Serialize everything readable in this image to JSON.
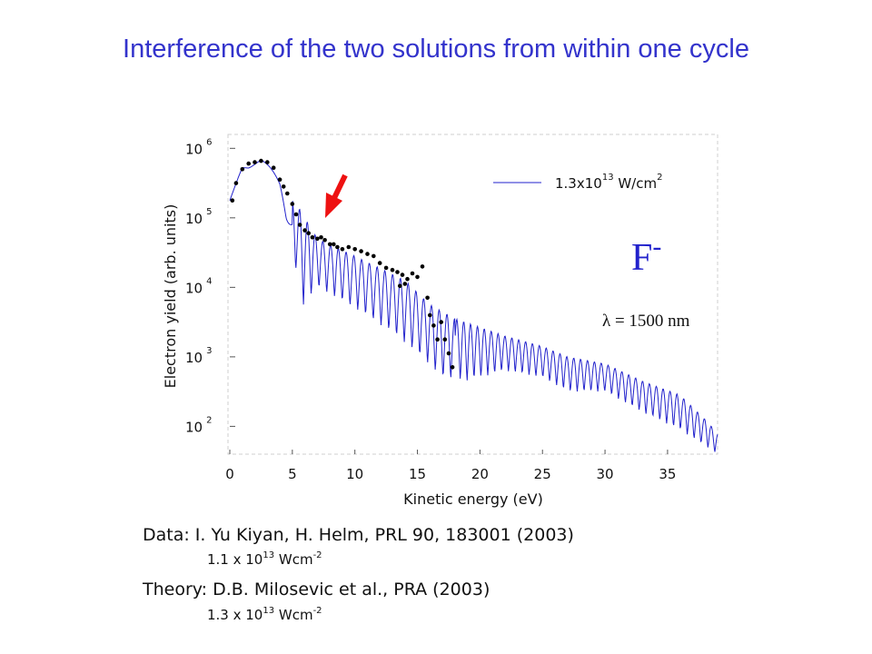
{
  "slide": {
    "title": "Interference of the two solutions from within one cycle"
  },
  "chart_data": {
    "type": "scatter",
    "xlabel": "Kinetic energy (eV)",
    "ylabel": "Electron yield (arb. units)",
    "xlim": [
      0,
      39
    ],
    "ylim_log10": [
      1.6,
      6.2
    ],
    "y_scale": "log",
    "x_ticks": [
      0,
      5,
      10,
      15,
      20,
      25,
      30,
      35
    ],
    "y_ticks": [
      {
        "base": "10",
        "exp": "2"
      },
      {
        "base": "10",
        "exp": "3"
      },
      {
        "base": "10",
        "exp": "4"
      },
      {
        "base": "10",
        "exp": "5"
      },
      {
        "base": "10",
        "exp": "6"
      }
    ],
    "legend": {
      "position": "top-right",
      "label_main": "1.3x10",
      "label_exp": "13",
      "label_unit": " W/cm",
      "label_unit_exp": "2"
    },
    "annotations": {
      "ion_base": "F",
      "ion_charge": "-",
      "wavelength": "λ = 1500 nm",
      "arrow_color": "#ee1111"
    },
    "colors": {
      "theory": "#2222cc",
      "data": "#000000"
    },
    "series": [
      {
        "role": "theory",
        "style": "line",
        "envelope_upper": [
          [
            0,
            5.25
          ],
          [
            1,
            5.75
          ],
          [
            2.5,
            5.85
          ],
          [
            4,
            5.6
          ],
          [
            5,
            5.3
          ],
          [
            7,
            4.7
          ],
          [
            10,
            4.45
          ],
          [
            14,
            4.1
          ],
          [
            16,
            3.75
          ],
          [
            18,
            3.55
          ],
          [
            22,
            3.3
          ],
          [
            25,
            3.15
          ],
          [
            27,
            3.0
          ],
          [
            30,
            2.9
          ],
          [
            33,
            2.65
          ],
          [
            36,
            2.45
          ],
          [
            38,
            2.1
          ],
          [
            39,
            1.9
          ]
        ],
        "envelope_lower": [
          [
            0,
            5.25
          ],
          [
            1,
            5.7
          ],
          [
            2.5,
            5.75
          ],
          [
            4,
            5.4
          ],
          [
            5,
            4.6
          ],
          [
            5.7,
            3.7
          ],
          [
            7,
            4.0
          ],
          [
            10,
            3.7
          ],
          [
            13,
            3.35
          ],
          [
            15,
            3.05
          ],
          [
            17,
            2.7
          ],
          [
            19,
            2.65
          ],
          [
            22,
            2.8
          ],
          [
            25,
            2.7
          ],
          [
            27,
            2.5
          ],
          [
            30,
            2.5
          ],
          [
            33,
            2.2
          ],
          [
            36,
            1.95
          ],
          [
            39,
            1.6
          ]
        ]
      },
      {
        "role": "data",
        "style": "points",
        "points": [
          [
            0.2,
            5.25
          ],
          [
            0.5,
            5.5
          ],
          [
            1.0,
            5.7
          ],
          [
            1.5,
            5.78
          ],
          [
            2.0,
            5.8
          ],
          [
            2.5,
            5.82
          ],
          [
            3.0,
            5.8
          ],
          [
            3.5,
            5.72
          ],
          [
            4.0,
            5.55
          ],
          [
            4.3,
            5.45
          ],
          [
            4.6,
            5.35
          ],
          [
            5.0,
            5.2
          ],
          [
            5.3,
            5.05
          ],
          [
            5.6,
            4.9
          ],
          [
            6.0,
            4.82
          ],
          [
            6.3,
            4.78
          ],
          [
            6.6,
            4.72
          ],
          [
            7.0,
            4.7
          ],
          [
            7.3,
            4.72
          ],
          [
            7.6,
            4.68
          ],
          [
            8.0,
            4.62
          ],
          [
            8.3,
            4.62
          ],
          [
            8.6,
            4.58
          ],
          [
            9.0,
            4.55
          ],
          [
            9.5,
            4.58
          ],
          [
            10.0,
            4.55
          ],
          [
            10.5,
            4.52
          ],
          [
            11.0,
            4.48
          ],
          [
            11.5,
            4.45
          ],
          [
            12.0,
            4.35
          ],
          [
            12.5,
            4.28
          ],
          [
            13.0,
            4.25
          ],
          [
            13.4,
            4.22
          ],
          [
            13.8,
            4.18
          ],
          [
            14.2,
            4.12
          ],
          [
            14.6,
            4.2
          ],
          [
            15.0,
            4.15
          ],
          [
            15.4,
            4.3
          ],
          [
            14.0,
            4.05
          ],
          [
            13.6,
            4.02
          ],
          [
            15.8,
            3.85
          ],
          [
            16.0,
            3.6
          ],
          [
            16.3,
            3.45
          ],
          [
            16.6,
            3.25
          ],
          [
            16.9,
            3.5
          ],
          [
            17.2,
            3.25
          ],
          [
            17.5,
            3.05
          ],
          [
            17.8,
            2.85
          ]
        ]
      }
    ]
  },
  "credits": {
    "data_line": "Data: I. Yu Kiyan, H. Helm, PRL 90, 183001 (2003)",
    "data_intensity_main": "1.1 x 10",
    "data_intensity_exp": "13",
    "data_intensity_unit": " Wcm",
    "data_intensity_unit_exp": "-2",
    "theory_line": "Theory: D.B. Milosevic et al., PRA (2003)",
    "theory_intensity_main": "1.3 x 10",
    "theory_intensity_exp": "13",
    "theory_intensity_unit": " Wcm",
    "theory_intensity_unit_exp": "-2"
  }
}
